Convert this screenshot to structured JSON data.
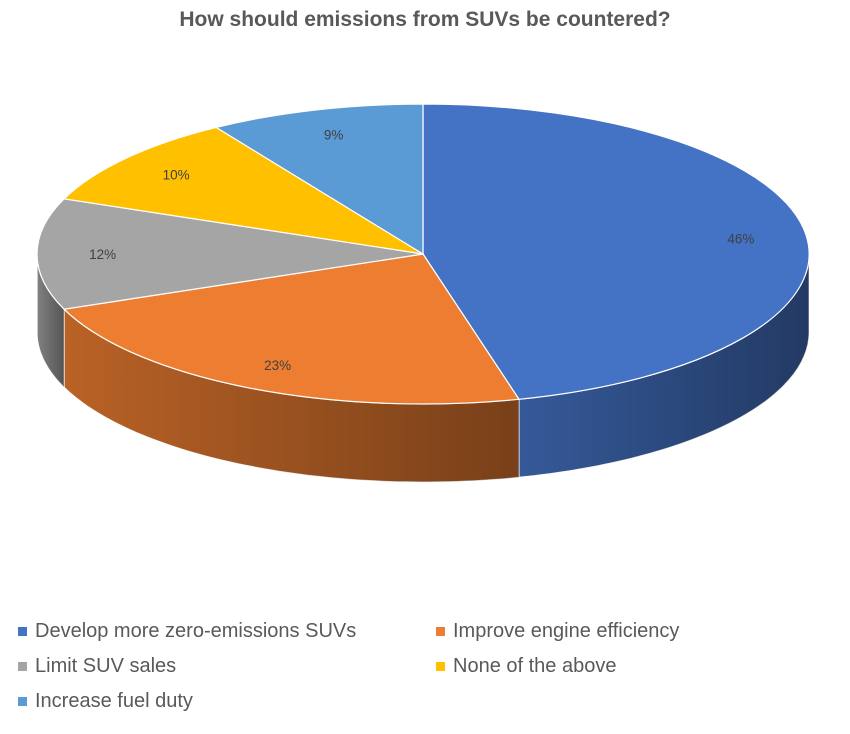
{
  "chart_data": {
    "type": "pie",
    "title": "How should emissions from SUVs be countered?",
    "categories": [
      "Develop more zero-emissions SUVs",
      "Improve engine efficiency",
      "Limit SUV sales",
      "None of the above",
      "Increase fuel duty"
    ],
    "values": [
      46,
      23,
      12,
      10,
      9
    ],
    "labels": [
      "46%",
      "23%",
      "12%",
      "10%",
      "9%"
    ],
    "colors": [
      "#4472C4",
      "#ED7D31",
      "#A5A5A5",
      "#FFC000",
      "#5B9BD5"
    ],
    "legend_position": "bottom",
    "three_d": true
  }
}
